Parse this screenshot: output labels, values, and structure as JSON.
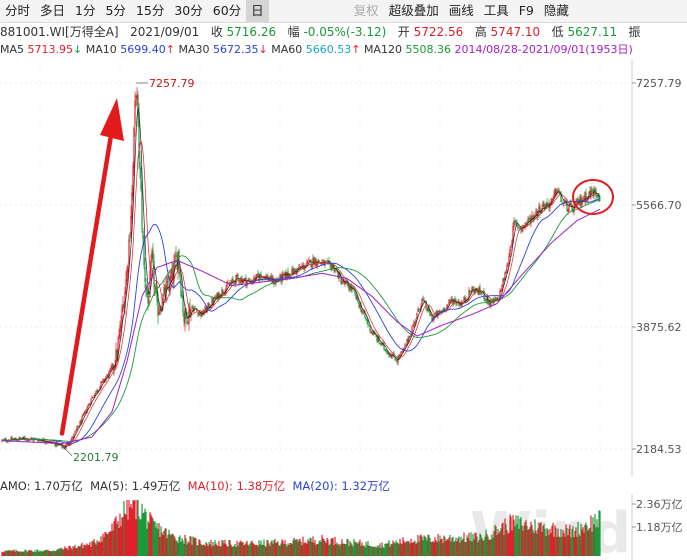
{
  "toolbar": {
    "items": [
      "分时",
      "多日",
      "1分",
      "5分",
      "15分",
      "30分",
      "60分",
      "日",
      "复权",
      "超级叠加",
      "画线",
      "工具",
      "F9",
      "隐藏"
    ],
    "active": "日"
  },
  "quote": {
    "code": "881001.WI",
    "name": "[万得全A]",
    "date": "2021/09/01",
    "close_label": "收",
    "close": "5716.26",
    "change_label": "幅",
    "change": "-0.05%(-3.12)",
    "open_label": "开",
    "open": "5722.56",
    "high_label": "高",
    "high": "5747.10",
    "low_label": "低",
    "low": "5627.11",
    "amp_label": "振"
  },
  "ma": {
    "ma5_label": "MA5",
    "ma5": "5713.95",
    "ma10_label": "MA10",
    "ma10": "5699.40",
    "ma30_label": "MA30",
    "ma30": "5672.35",
    "ma60_label": "MA60",
    "ma60": "5660.53",
    "ma120_label": "MA120",
    "ma120": "5508.36",
    "range_text": "2014/08/28-2021/09/01(1953日)"
  },
  "price_axis": {
    "ticks": [
      "7257.79",
      "5566.70",
      "3875.62",
      "2184.53"
    ]
  },
  "annotations": {
    "high_mark": "7257.79",
    "low_mark": "2201.79"
  },
  "volume": {
    "amo_label": "AMO:",
    "amo": "1.70万亿",
    "ma5_label": "MA(5):",
    "ma5": "1.49万亿",
    "ma10_label": "MA(10):",
    "ma10": "1.38万亿",
    "ma20_label": "MA(20):",
    "ma20": "1.32万亿",
    "axis_ticks": [
      "2.36万亿",
      "1.18万亿"
    ],
    "watermark": "Wind"
  },
  "colors": {
    "up": "#e0212c",
    "down": "#1a9a3a",
    "ma5": "#222222",
    "ma10": "#e0212c",
    "ma30": "#2b44d6",
    "ma60": "#1a9a3a",
    "ma120": "#a020c8",
    "arrow": "#e31a1c"
  },
  "chart_data": {
    "type": "candlestick",
    "date_range": [
      "2014/08/28",
      "2021/09/01"
    ],
    "trend": [
      [
        0,
        2300
      ],
      [
        20,
        2330
      ],
      [
        40,
        2310
      ],
      [
        55,
        2250
      ],
      [
        62,
        2202
      ],
      [
        70,
        2330
      ],
      [
        80,
        2600
      ],
      [
        90,
        2900
      ],
      [
        100,
        3100
      ],
      [
        108,
        3250
      ],
      [
        115,
        3500
      ],
      [
        120,
        4050
      ],
      [
        125,
        4650
      ],
      [
        130,
        5700
      ],
      [
        134,
        7258
      ],
      [
        138,
        6000
      ],
      [
        142,
        4700
      ],
      [
        146,
        4200
      ],
      [
        150,
        4800
      ],
      [
        155,
        4100
      ],
      [
        162,
        4300
      ],
      [
        170,
        4550
      ],
      [
        176,
        4900
      ],
      [
        182,
        4000
      ],
      [
        190,
        4150
      ],
      [
        200,
        4050
      ],
      [
        210,
        4220
      ],
      [
        222,
        4400
      ],
      [
        235,
        4550
      ],
      [
        248,
        4500
      ],
      [
        260,
        4600
      ],
      [
        272,
        4500
      ],
      [
        285,
        4600
      ],
      [
        300,
        4700
      ],
      [
        312,
        4800
      ],
      [
        322,
        4750
      ],
      [
        332,
        4700
      ],
      [
        340,
        4500
      ],
      [
        350,
        4400
      ],
      [
        360,
        4100
      ],
      [
        368,
        3850
      ],
      [
        378,
        3650
      ],
      [
        388,
        3500
      ],
      [
        395,
        3420
      ],
      [
        402,
        3560
      ],
      [
        410,
        3850
      ],
      [
        420,
        4250
      ],
      [
        430,
        4000
      ],
      [
        440,
        4100
      ],
      [
        450,
        4250
      ],
      [
        460,
        4200
      ],
      [
        470,
        4400
      ],
      [
        480,
        4350
      ],
      [
        488,
        4200
      ],
      [
        496,
        4250
      ],
      [
        505,
        4700
      ],
      [
        512,
        5300
      ],
      [
        520,
        5250
      ],
      [
        530,
        5400
      ],
      [
        540,
        5550
      ],
      [
        550,
        5600
      ],
      [
        555,
        5800
      ],
      [
        560,
        5600
      ],
      [
        570,
        5500
      ],
      [
        580,
        5650
      ],
      [
        590,
        5750
      ],
      [
        598,
        5716
      ]
    ],
    "ma120": [
      [
        0,
        2300
      ],
      [
        60,
        2260
      ],
      [
        90,
        2350
      ],
      [
        110,
        2700
      ],
      [
        125,
        3400
      ],
      [
        140,
        4300
      ],
      [
        155,
        4700
      ],
      [
        175,
        4800
      ],
      [
        200,
        4650
      ],
      [
        230,
        4450
      ],
      [
        260,
        4500
      ],
      [
        290,
        4550
      ],
      [
        320,
        4620
      ],
      [
        345,
        4550
      ],
      [
        370,
        4300
      ],
      [
        395,
        3950
      ],
      [
        415,
        3750
      ],
      [
        440,
        3900
      ],
      [
        470,
        4050
      ],
      [
        495,
        4200
      ],
      [
        520,
        4600
      ],
      [
        550,
        5050
      ],
      [
        575,
        5350
      ],
      [
        598,
        5508
      ]
    ],
    "volume_profile": [
      [
        0,
        0.22
      ],
      [
        50,
        0.25
      ],
      [
        90,
        0.55
      ],
      [
        110,
        1.2
      ],
      [
        125,
        2.2
      ],
      [
        135,
        2.36
      ],
      [
        150,
        1.4
      ],
      [
        170,
        0.9
      ],
      [
        200,
        0.6
      ],
      [
        240,
        0.55
      ],
      [
        280,
        0.6
      ],
      [
        320,
        0.75
      ],
      [
        350,
        0.6
      ],
      [
        380,
        0.5
      ],
      [
        410,
        0.75
      ],
      [
        440,
        0.8
      ],
      [
        480,
        0.85
      ],
      [
        510,
        1.5
      ],
      [
        540,
        1.3
      ],
      [
        570,
        1.1
      ],
      [
        598,
        1.7
      ]
    ]
  }
}
